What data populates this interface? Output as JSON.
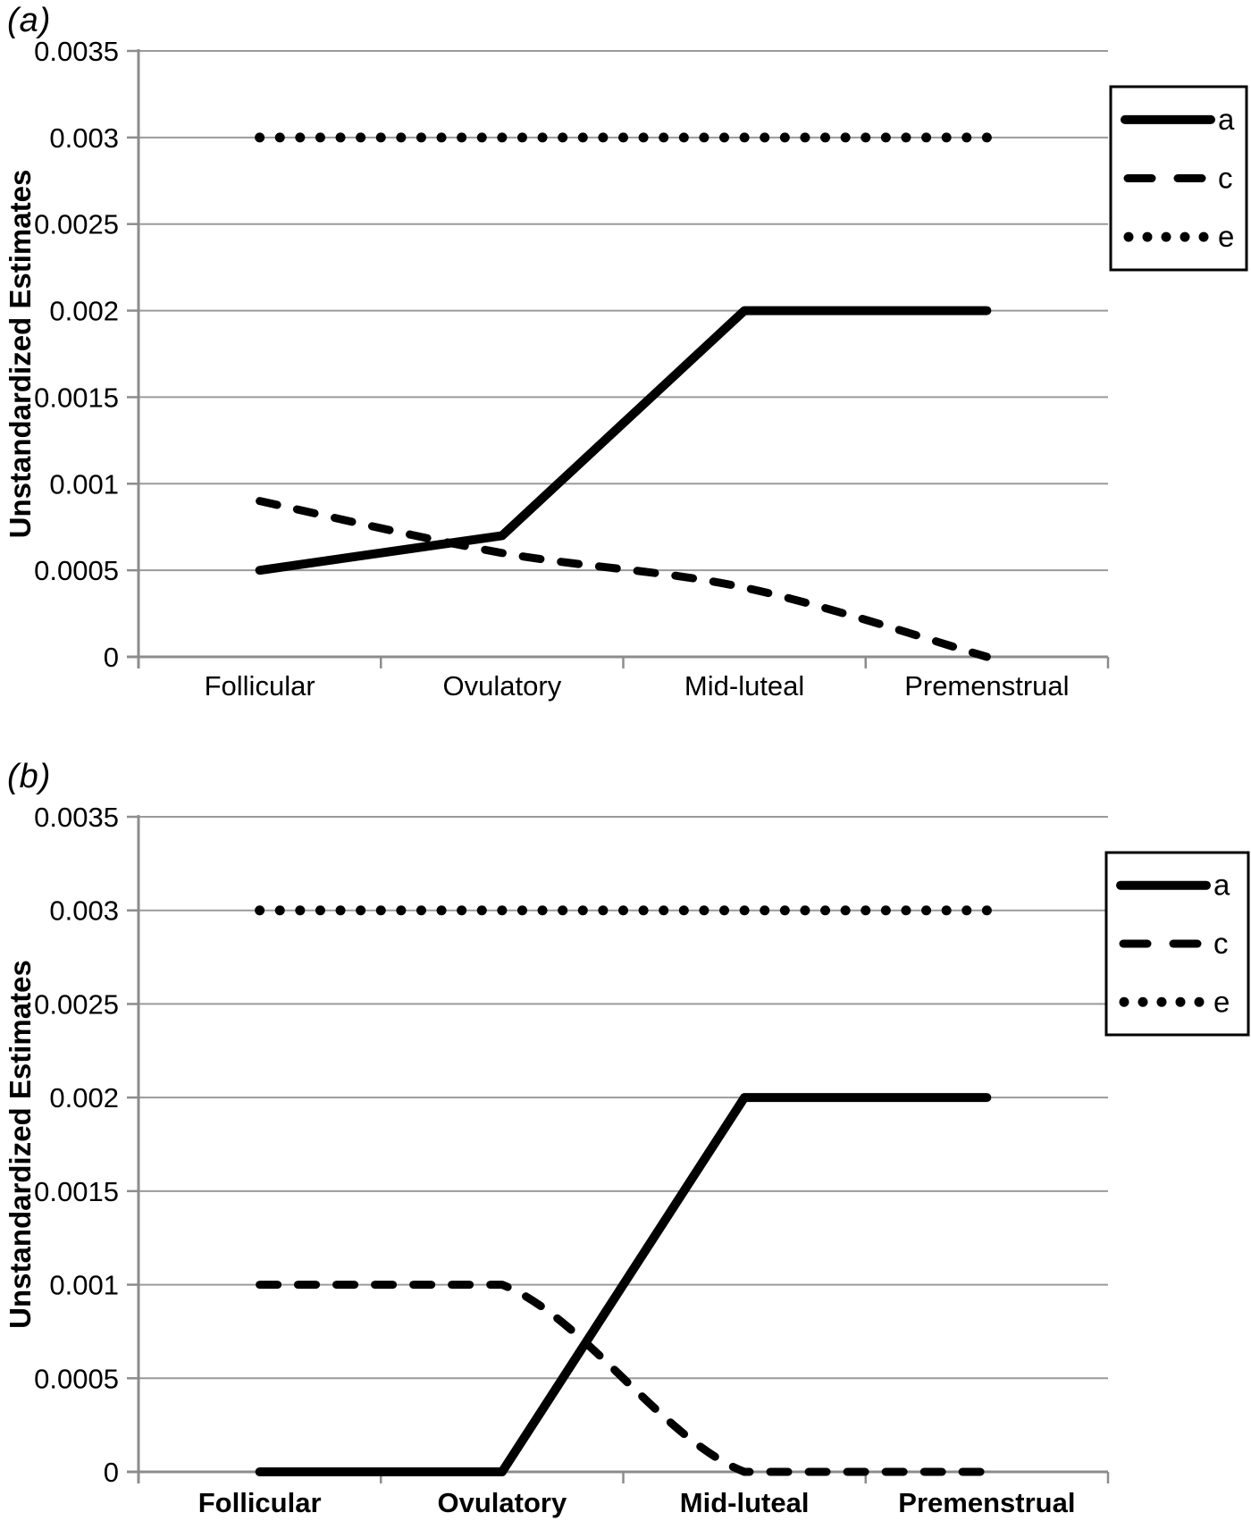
{
  "figure": {
    "panel_a_label": "(a)",
    "panel_b_label": "(b)"
  },
  "colors": {
    "series_line": "#000000",
    "gridline": "#9a9a9a",
    "axis": "#8c8c8c",
    "background": "#ffffff",
    "legend_border": "#000000",
    "legend_fill": "#ffffff"
  },
  "chart_data": [
    {
      "panel": "(a)",
      "type": "line",
      "title": "",
      "xlabel": "",
      "ylabel": "Unstandardized Estimates",
      "categories": [
        "Follicular",
        "Ovulatory",
        "Mid-luteal",
        "Premenstrual"
      ],
      "series": [
        {
          "name": "a",
          "style": "solid",
          "smooth": false,
          "values": [
            0.0005,
            0.0007,
            0.002,
            0.002
          ]
        },
        {
          "name": "c",
          "style": "dashed",
          "smooth": true,
          "values": [
            0.0009,
            0.0006,
            0.0004,
            0.0
          ]
        },
        {
          "name": "e",
          "style": "dotted",
          "smooth": false,
          "values": [
            0.003,
            0.003,
            0.003,
            0.003
          ]
        }
      ],
      "ylim": [
        0,
        0.0035
      ],
      "yticks": [
        "0.0035",
        "0.003",
        "0.0025",
        "0.002",
        "0.0015",
        "0.001",
        "0.0005",
        "0"
      ],
      "grid": "horizontal",
      "legend_position": "top-right",
      "x_labels_bold": false
    },
    {
      "panel": "(b)",
      "type": "line",
      "title": "",
      "xlabel": "",
      "ylabel": "Unstandardized Estimates",
      "categories": [
        "Follicular",
        "Ovulatory",
        "Mid-luteal",
        "Premenstrual"
      ],
      "series": [
        {
          "name": "a",
          "style": "solid",
          "smooth": false,
          "values": [
            0.0,
            0.0,
            0.002,
            0.002
          ]
        },
        {
          "name": "c",
          "style": "dashed",
          "smooth": true,
          "values": [
            0.001,
            0.001,
            0.0,
            0.0
          ]
        },
        {
          "name": "e",
          "style": "dotted",
          "smooth": false,
          "values": [
            0.003,
            0.003,
            0.003,
            0.003
          ]
        }
      ],
      "ylim": [
        0,
        0.0035
      ],
      "yticks": [
        "0.0035",
        "0.003",
        "0.0025",
        "0.002",
        "0.0015",
        "0.001",
        "0.0005",
        "0"
      ],
      "grid": "horizontal",
      "legend_position": "top-right",
      "x_labels_bold": true
    }
  ]
}
